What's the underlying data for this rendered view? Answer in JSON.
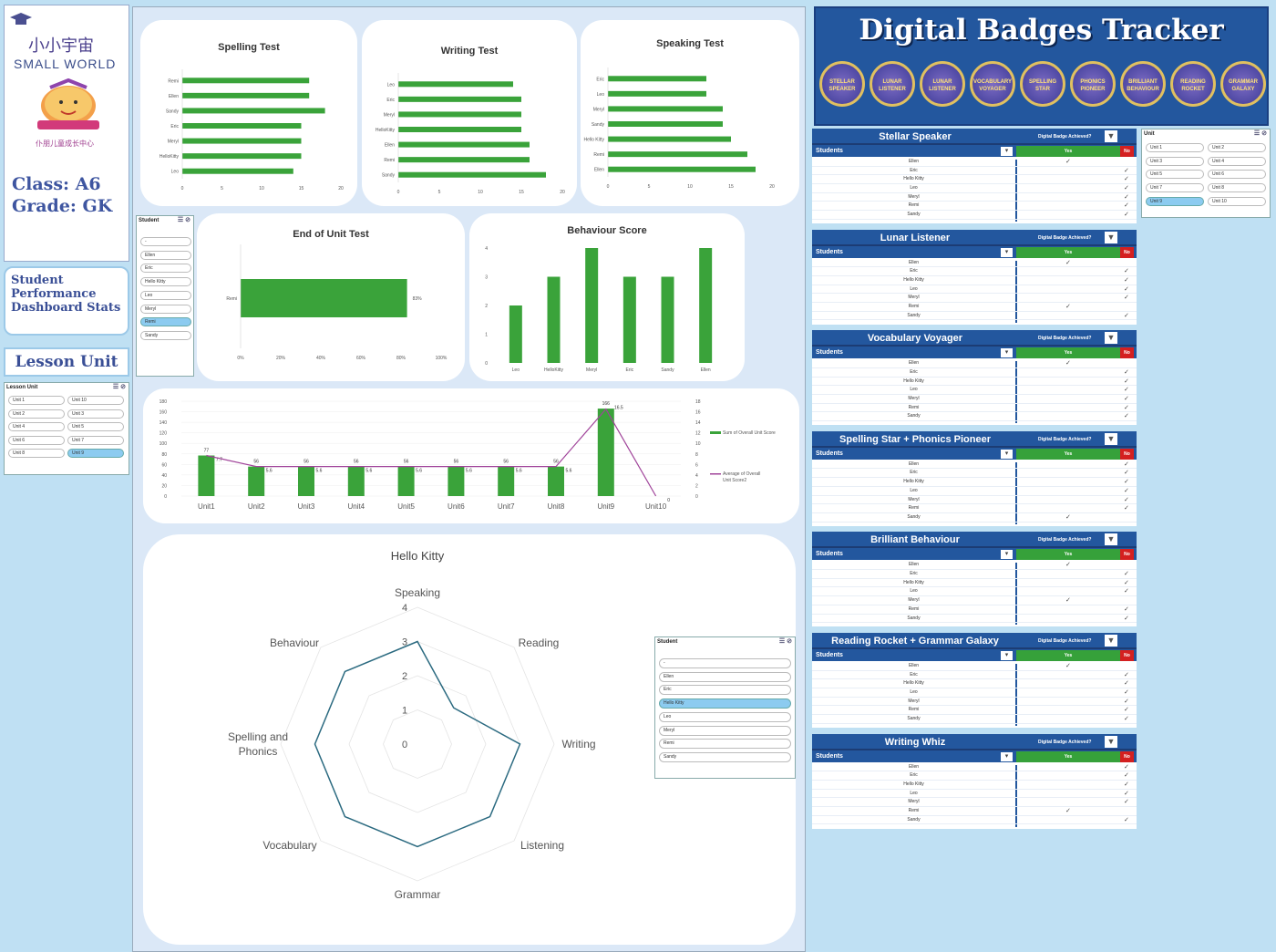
{
  "logo": {
    "cn": "小小宇宙",
    "en": "SMALL WORLD",
    "sub": "仆朋儿童成长中心"
  },
  "class_grade": {
    "class": "Class: A6",
    "grade": "Grade: GK"
  },
  "perf_title": "Student Performance Dashboard Stats",
  "lesson_unit_title": "Lesson Unit",
  "lesson_slicer": {
    "title": "Lesson Unit",
    "items": [
      "Unit 1",
      "Unit 10",
      "Unit 2",
      "Unit 3",
      "Unit 4",
      "Unit 5",
      "Unit 6",
      "Unit 7",
      "Unit 8",
      "Unit 9"
    ],
    "selected": "Unit 9"
  },
  "student_slicer": {
    "title": "Student",
    "items": [
      "-",
      "Ellen",
      "Eric",
      "Hello Kitty",
      "Leo",
      "Meryl",
      "Remi",
      "Sandy"
    ],
    "selected": "Remi"
  },
  "student_slicer2": {
    "title": "Student",
    "items": [
      "-",
      "Ellen",
      "Eric",
      "Hello Kitty",
      "Leo",
      "Meryl",
      "Remi",
      "Sandy"
    ],
    "selected": "Hello Kitty"
  },
  "unit_slicer": {
    "title": "Unit",
    "items": [
      "Unit 1",
      "Unit 2",
      "Unit 3",
      "Unit 4",
      "Unit 5",
      "Unit 6",
      "Unit 7",
      "Unit 8",
      "Unit 9",
      "Unit 10"
    ],
    "selected": "Unit 9"
  },
  "colors": {
    "bar": "#3aa33a",
    "line": "#a0449a",
    "radar": "#2b6a80",
    "header": "#23579e"
  },
  "chart_data": [
    {
      "type": "bar",
      "orientation": "horizontal",
      "title": "Spelling Test",
      "categories": [
        "Remi",
        "Ellen",
        "Sandy",
        "Eric",
        "Meryl",
        "HelloKitty",
        "Leo"
      ],
      "values": [
        16,
        16,
        18,
        15,
        15,
        15,
        14
      ],
      "xlim": [
        0,
        20
      ],
      "ticks": [
        "0",
        "5",
        "10",
        "15",
        "20"
      ]
    },
    {
      "type": "bar",
      "orientation": "horizontal",
      "title": "Writing Test",
      "categories": [
        "Leo",
        "Eric",
        "Meryl",
        "HelloKitty",
        "Ellen",
        "Remi",
        "Sandy"
      ],
      "values": [
        14,
        15,
        15,
        15,
        16,
        16,
        18
      ],
      "xlim": [
        0,
        20
      ],
      "ticks": [
        "0",
        "5",
        "10",
        "15",
        "20"
      ]
    },
    {
      "type": "bar",
      "orientation": "horizontal",
      "title": "Speaking Test",
      "categories": [
        "Eric",
        "Leo",
        "Meryl",
        "Sandy",
        "Hello Kitty",
        "Remi",
        "Ellen"
      ],
      "values": [
        12,
        12,
        14,
        14,
        15,
        17,
        18
      ],
      "xlim": [
        0,
        20
      ],
      "ticks": [
        "0",
        "5",
        "10",
        "15",
        "20"
      ]
    },
    {
      "type": "bar",
      "orientation": "horizontal",
      "title": "End of Unit Test",
      "categories": [
        "Remi"
      ],
      "values": [
        83
      ],
      "value_labels": [
        "83%"
      ],
      "xlim": [
        0,
        100
      ],
      "ticks": [
        "0%",
        "20%",
        "40%",
        "60%",
        "80%",
        "100%"
      ]
    },
    {
      "type": "bar",
      "title": "Behaviour Score",
      "categories": [
        "Leo",
        "HelloKitty",
        "Meryl",
        "Eric",
        "Sandy",
        "Ellen"
      ],
      "values": [
        2,
        3,
        4,
        3,
        3,
        4
      ],
      "ylim": [
        0,
        4
      ],
      "ticks": [
        "0",
        "1",
        "2",
        "3",
        "4"
      ]
    },
    {
      "type": "bar+line",
      "categories": [
        "Unit1",
        "Unit2",
        "Unit3",
        "Unit4",
        "Unit5",
        "Unit6",
        "Unit7",
        "Unit8",
        "Unit9",
        "Unit10"
      ],
      "series": [
        {
          "name": "Sum of Overall Unit Score",
          "values": [
            77,
            56,
            56,
            56,
            56,
            56,
            56,
            56,
            166,
            0
          ],
          "labels": [
            "77",
            "56",
            "56",
            "56",
            "56",
            "56",
            "56",
            "56",
            "166",
            ""
          ]
        },
        {
          "name": "Average of Overall Unit Score2",
          "values": [
            7.7,
            5.6,
            5.6,
            5.6,
            5.6,
            5.6,
            5.6,
            5.6,
            16.5,
            0
          ],
          "labels": [
            "7.7",
            "5.6",
            "5.6",
            "5.6",
            "5.6",
            "5.6",
            "5.6",
            "5.6",
            "16.5",
            "0"
          ]
        }
      ],
      "ylim_left": [
        0,
        180
      ],
      "ylim_right": [
        0,
        18
      ],
      "left_ticks": [
        "0",
        "20",
        "40",
        "60",
        "80",
        "100",
        "120",
        "140",
        "160",
        "180"
      ],
      "right_ticks": [
        "0",
        "2",
        "4",
        "6",
        "8",
        "10",
        "12",
        "14",
        "16",
        "18"
      ]
    },
    {
      "type": "radar",
      "title": "Hello Kitty",
      "categories": [
        "Speaking",
        "Reading",
        "Writing",
        "Listening",
        "Grammar",
        "Vocabulary",
        "Spelling and Phonics",
        "Behaviour"
      ],
      "values": [
        3,
        1.5,
        3,
        3,
        3,
        3,
        3,
        3
      ],
      "rlim": [
        0,
        4
      ],
      "ticks": [
        "0",
        "1",
        "2",
        "3",
        "4"
      ]
    }
  ],
  "tracker": {
    "title": "Digital Badges Tracker",
    "badges": [
      "STELLAR SPEAKER",
      "LUNAR LISTENER",
      "LUNAR LISTENER",
      "VOCABULARY VOYAGER",
      "SPELLING STAR",
      "PHONICS PIONEER",
      "BRILLIANT BEHAVIOUR",
      "READING ROCKET",
      "GRAMMAR GALAXY"
    ],
    "question": "Digital Badge Achieved?",
    "students_label": "Students",
    "yes": "Yes",
    "no": "No",
    "tables": [
      {
        "title": "Stellar Speaker",
        "rows": [
          [
            "Ellen",
            "y"
          ],
          [
            "Eric",
            "n"
          ],
          [
            "Hello Kitty",
            "n"
          ],
          [
            "Leo",
            "n"
          ],
          [
            "Meryl",
            "n"
          ],
          [
            "Remi",
            "n"
          ],
          [
            "Sandy",
            "n"
          ]
        ]
      },
      {
        "title": "Lunar Listener",
        "rows": [
          [
            "Ellen",
            "y"
          ],
          [
            "Eric",
            "n"
          ],
          [
            "Hello Kitty",
            "n"
          ],
          [
            "Leo",
            "n"
          ],
          [
            "Meryl",
            "n"
          ],
          [
            "Remi",
            "y"
          ],
          [
            "Sandy",
            "n"
          ]
        ]
      },
      {
        "title": "Vocabulary Voyager",
        "rows": [
          [
            "Ellen",
            "y"
          ],
          [
            "Eric",
            "n"
          ],
          [
            "Hello Kitty",
            "n"
          ],
          [
            "Leo",
            "n"
          ],
          [
            "Meryl",
            "n"
          ],
          [
            "Remi",
            "n"
          ],
          [
            "Sandy",
            "n"
          ]
        ]
      },
      {
        "title": "Spelling Star + Phonics Pioneer",
        "rows": [
          [
            "Ellen",
            "n"
          ],
          [
            "Eric",
            "n"
          ],
          [
            "Hello Kitty",
            "n"
          ],
          [
            "Leo",
            "n"
          ],
          [
            "Meryl",
            "n"
          ],
          [
            "Remi",
            "n"
          ],
          [
            "Sandy",
            "y"
          ]
        ]
      },
      {
        "title": "Brilliant Behaviour",
        "rows": [
          [
            "Ellen",
            "y"
          ],
          [
            "Eric",
            "n"
          ],
          [
            "Hello Kitty",
            "n"
          ],
          [
            "Leo",
            "n"
          ],
          [
            "Meryl",
            "y"
          ],
          [
            "Remi",
            "n"
          ],
          [
            "Sandy",
            "n"
          ]
        ]
      },
      {
        "title": "Reading Rocket + Grammar Galaxy",
        "rows": [
          [
            "Ellen",
            "y"
          ],
          [
            "Eric",
            "n"
          ],
          [
            "Hello Kitty",
            "n"
          ],
          [
            "Leo",
            "n"
          ],
          [
            "Meryl",
            "n"
          ],
          [
            "Remi",
            "n"
          ],
          [
            "Sandy",
            "n"
          ]
        ]
      },
      {
        "title": "Writing Whiz",
        "rows": [
          [
            "Ellen",
            "n"
          ],
          [
            "Eric",
            "n"
          ],
          [
            "Hello Kitty",
            "n"
          ],
          [
            "Leo",
            "n"
          ],
          [
            "Meryl",
            "n"
          ],
          [
            "Remi",
            "y"
          ],
          [
            "Sandy",
            "n"
          ]
        ]
      }
    ]
  }
}
